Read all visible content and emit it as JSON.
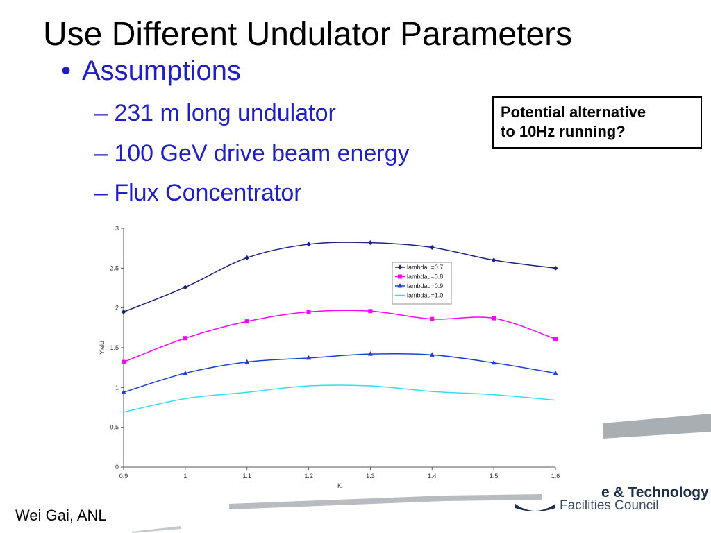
{
  "slide": {
    "title": "Use Different Undulator Parameters",
    "bullet": "Assumptions",
    "sub_items": [
      "– 231 m long undulator",
      "– 100 GeV drive beam energy",
      "– Flux Concentrator"
    ],
    "callout_lines": [
      "Potential alternative",
      "to 10Hz running?"
    ],
    "footer": "Wei Gai, ANL",
    "logo_line1": "e & Technology",
    "logo_line2": "Facilities Council"
  },
  "chart_data": {
    "type": "line",
    "xlabel": "K",
    "ylabel": "Yield",
    "xlim": [
      0.9,
      1.6
    ],
    "ylim": [
      0,
      3
    ],
    "x": [
      0.9,
      1.0,
      1.1,
      1.2,
      1.3,
      1.4,
      1.5,
      1.6
    ],
    "xticks": [
      "0.9",
      "1",
      "1.1",
      "1.2",
      "1.3",
      "1.4",
      "1.5",
      "1.6"
    ],
    "yticks": [
      "0",
      "0.5",
      "1",
      "1.5",
      "2",
      "2.5",
      "3"
    ],
    "legend_position": "center-right",
    "grid": false,
    "series": [
      {
        "name": "lambdau=0.7",
        "color": "#1a237e",
        "marker": "diamond",
        "values": [
          1.95,
          2.26,
          2.63,
          2.8,
          2.82,
          2.76,
          2.6,
          2.5
        ]
      },
      {
        "name": "lambdau=0.8",
        "color": "#ff00ff",
        "marker": "square",
        "values": [
          1.32,
          1.62,
          1.83,
          1.95,
          1.96,
          1.86,
          1.87,
          1.61
        ]
      },
      {
        "name": "lambdau=0.9",
        "color": "#1f3fd0",
        "marker": "triangle",
        "values": [
          0.94,
          1.18,
          1.32,
          1.37,
          1.42,
          1.41,
          1.31,
          1.18
        ]
      },
      {
        "name": "lambdau=1.0",
        "color": "#33ddee",
        "marker": "none",
        "values": [
          0.69,
          0.86,
          0.94,
          1.02,
          1.02,
          0.95,
          0.91,
          0.84
        ]
      }
    ]
  }
}
